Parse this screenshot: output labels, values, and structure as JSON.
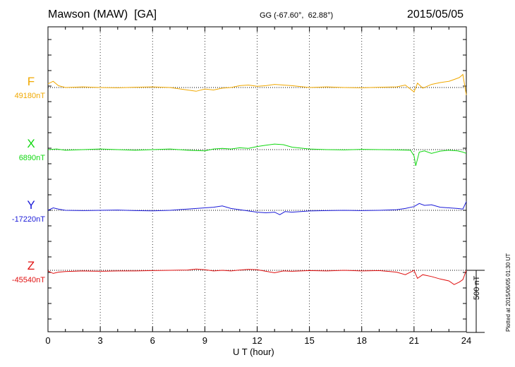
{
  "header": {
    "station": "Mawson (MAW)  [GA]",
    "coords": "GG (-67.60°,  62.88°)",
    "date": "2015/05/05"
  },
  "footer": {
    "plotted": "Plotted at 2015/06/05 01:30 UT"
  },
  "chart_data": {
    "type": "line",
    "title": "Mawson (MAW)  [GA]",
    "xlabel": "U T (hour)",
    "xlim": [
      0,
      24
    ],
    "xticks": [
      0,
      3,
      6,
      9,
      12,
      15,
      18,
      21,
      24
    ],
    "scale_bar_label": "500 nT",
    "scale_bar_nT": 500,
    "grid": true,
    "series": [
      {
        "name": "F",
        "baseline_label": "49180nT",
        "baseline_nT": 49180,
        "color": "#f0a800",
        "x": [
          0,
          0.3,
          0.6,
          1,
          2,
          3,
          4,
          5,
          6,
          7,
          8,
          8.5,
          9,
          9.5,
          10,
          10.5,
          11,
          11.5,
          12,
          12.5,
          13,
          13.5,
          14,
          15,
          16,
          17,
          18,
          19,
          20,
          20.5,
          21,
          21.2,
          21.5,
          22,
          22.5,
          23,
          23.3,
          23.6,
          23.8,
          24
        ],
        "y": [
          49210,
          49230,
          49195,
          49180,
          49185,
          49180,
          49178,
          49182,
          49185,
          49180,
          49160,
          49150,
          49168,
          49160,
          49175,
          49180,
          49195,
          49200,
          49190,
          49195,
          49205,
          49200,
          49195,
          49180,
          49185,
          49180,
          49178,
          49182,
          49185,
          49200,
          49145,
          49215,
          49175,
          49205,
          49220,
          49230,
          49245,
          49260,
          49285,
          49120
        ]
      },
      {
        "name": "X",
        "baseline_label": "6890nT",
        "baseline_nT": 6890,
        "color": "#10d810",
        "x": [
          0,
          0.5,
          1,
          2,
          3,
          4,
          5,
          6,
          7,
          8,
          9,
          9.5,
          10,
          10.5,
          11,
          11.5,
          12,
          12.5,
          13,
          13.5,
          14,
          15,
          16,
          17,
          18,
          19,
          20,
          20.8,
          21,
          21.1,
          21.3,
          21.6,
          22,
          22.5,
          23,
          23.5,
          23.8,
          24
        ],
        "y": [
          6890,
          6895,
          6885,
          6890,
          6895,
          6890,
          6885,
          6890,
          6895,
          6885,
          6880,
          6895,
          6900,
          6895,
          6905,
          6900,
          6915,
          6925,
          6935,
          6930,
          6910,
          6895,
          6890,
          6888,
          6892,
          6890,
          6888,
          6885,
          6840,
          6760,
          6870,
          6880,
          6860,
          6878,
          6885,
          6880,
          6870,
          6860
        ]
      },
      {
        "name": "Y",
        "baseline_label": "-17220nT",
        "baseline_nT": -17220,
        "color": "#1a1ad8",
        "x": [
          0,
          0.3,
          0.6,
          1,
          2,
          3,
          4,
          5,
          6,
          7,
          8,
          9,
          9.5,
          10,
          10.5,
          11,
          11.5,
          12,
          12.5,
          13,
          13.3,
          13.6,
          14,
          15,
          16,
          17,
          18,
          19,
          20,
          20.5,
          21,
          21.3,
          21.6,
          22,
          22.5,
          23,
          23.5,
          23.8,
          24
        ],
        "y": [
          -17220,
          -17200,
          -17210,
          -17220,
          -17222,
          -17220,
          -17218,
          -17222,
          -17224,
          -17220,
          -17210,
          -17200,
          -17195,
          -17185,
          -17205,
          -17215,
          -17225,
          -17235,
          -17240,
          -17235,
          -17255,
          -17230,
          -17235,
          -17225,
          -17222,
          -17220,
          -17222,
          -17220,
          -17215,
          -17205,
          -17190,
          -17165,
          -17180,
          -17175,
          -17195,
          -17200,
          -17205,
          -17210,
          -17150
        ]
      },
      {
        "name": "Z",
        "baseline_label": "-45540nT",
        "baseline_nT": -45540,
        "color": "#e01010",
        "x": [
          0,
          0.3,
          0.6,
          1,
          2,
          3,
          4,
          5,
          6,
          7,
          8,
          8.5,
          9,
          9.5,
          10,
          10.5,
          11,
          11.5,
          12,
          12.5,
          13,
          13.5,
          14,
          15,
          16,
          17,
          18,
          19,
          20,
          20.5,
          21,
          21.2,
          21.5,
          22,
          22.5,
          23,
          23.3,
          23.6,
          23.8,
          24
        ],
        "y": [
          -45545,
          -45565,
          -45555,
          -45550,
          -45545,
          -45548,
          -45545,
          -45545,
          -45542,
          -45540,
          -45538,
          -45530,
          -45535,
          -45545,
          -45540,
          -45545,
          -45538,
          -45532,
          -45535,
          -45548,
          -45560,
          -45545,
          -45548,
          -45542,
          -45545,
          -45540,
          -45545,
          -45542,
          -45555,
          -45575,
          -45540,
          -45605,
          -45575,
          -45590,
          -45610,
          -45625,
          -45655,
          -45635,
          -45615,
          -45540
        ]
      }
    ]
  }
}
